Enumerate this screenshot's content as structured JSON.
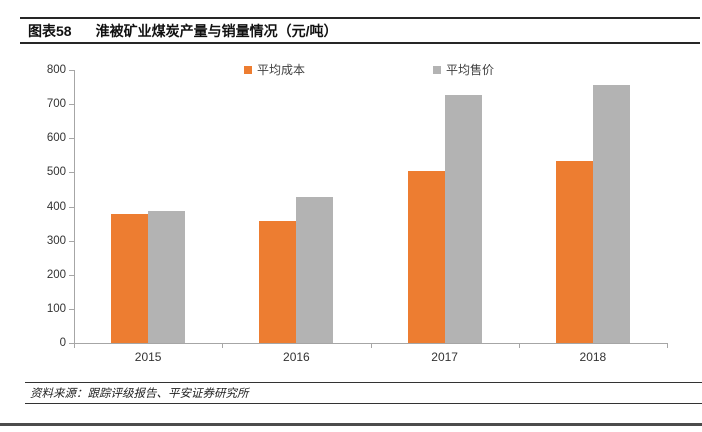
{
  "header": {
    "figure_label": "图表58",
    "title": "淮被矿业煤炭产量与销量情况（元/吨）"
  },
  "footer": {
    "source": "资料来源：跟踪评级报告、平安证券研究所"
  },
  "chart_data": {
    "type": "bar",
    "title": "淮被矿业煤炭产量与销量情况（元/吨）",
    "categories": [
      "2015",
      "2016",
      "2017",
      "2018"
    ],
    "series": [
      {
        "name": "平均成本",
        "color": "#ED7D31",
        "values": [
          378,
          358,
          503,
          533
        ]
      },
      {
        "name": "平均售价",
        "color": "#B3B3B3",
        "values": [
          386,
          428,
          727,
          755
        ]
      }
    ],
    "ylim": [
      0,
      800
    ],
    "ytick_step": 100,
    "yticks": [
      0,
      100,
      200,
      300,
      400,
      500,
      600,
      700,
      800
    ],
    "xlabel": "",
    "ylabel": "",
    "grid": false,
    "legend_position": "top-center",
    "axis_color": "#A6A6A6"
  }
}
